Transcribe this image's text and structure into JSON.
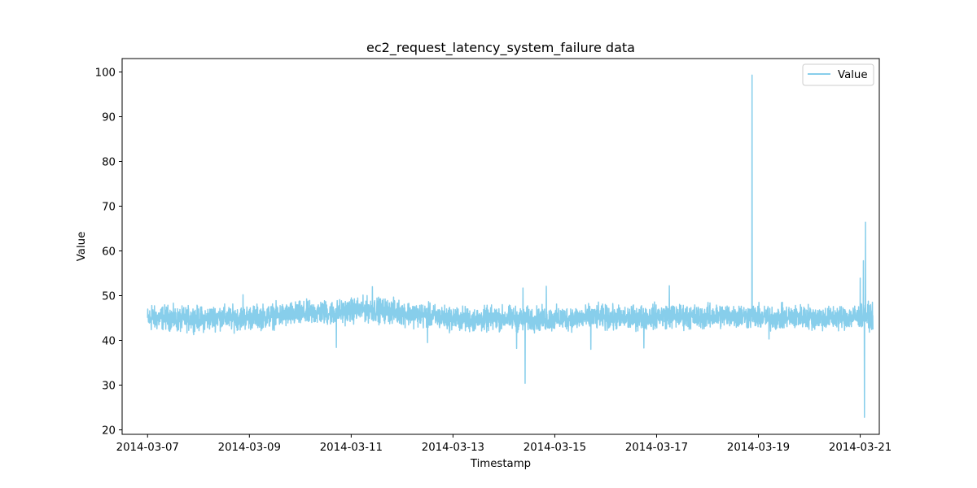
{
  "chart_data": {
    "type": "line",
    "title": "ec2_request_latency_system_failure data",
    "xlabel": "Timestamp",
    "ylabel": "Value",
    "x_range": [
      "2014-03-06T12:00",
      "2014-03-21T09:00"
    ],
    "ylim": [
      19.0,
      103.0
    ],
    "x_ticks": [
      "2014-03-07",
      "2014-03-09",
      "2014-03-11",
      "2014-03-13",
      "2014-03-15",
      "2014-03-17",
      "2014-03-19",
      "2014-03-21"
    ],
    "y_ticks": [
      20,
      30,
      40,
      50,
      60,
      70,
      80,
      90,
      100
    ],
    "grid": false,
    "legend": {
      "position": "top-right",
      "entries": [
        "Value"
      ]
    },
    "series": [
      {
        "name": "Value",
        "color": "#87ceeb",
        "x": [
          "2014-03-07T03:00",
          "2014-03-07T09:00",
          "2014-03-07T15:00",
          "2014-03-07T21:00",
          "2014-03-08T03:00",
          "2014-03-08T09:00",
          "2014-03-08T15:00",
          "2014-03-08T21:00",
          "2014-03-09T03:00",
          "2014-03-09T09:00",
          "2014-03-09T15:00",
          "2014-03-09T21:00",
          "2014-03-10T03:00",
          "2014-03-10T09:00",
          "2014-03-10T15:00",
          "2014-03-10T21:00",
          "2014-03-11T03:00",
          "2014-03-11T09:00",
          "2014-03-11T15:00",
          "2014-03-11T21:00",
          "2014-03-12T03:00",
          "2014-03-12T09:00",
          "2014-03-12T15:00",
          "2014-03-12T21:00",
          "2014-03-13T03:00",
          "2014-03-13T09:00",
          "2014-03-13T15:00",
          "2014-03-13T21:00",
          "2014-03-14T03:00",
          "2014-03-14T09:00",
          "2014-03-14T15:00",
          "2014-03-14T21:00",
          "2014-03-15T03:00",
          "2014-03-15T09:00",
          "2014-03-15T15:00",
          "2014-03-15T21:00",
          "2014-03-16T03:00",
          "2014-03-16T09:00",
          "2014-03-16T15:00",
          "2014-03-16T21:00",
          "2014-03-17T03:00",
          "2014-03-17T09:00",
          "2014-03-17T15:00",
          "2014-03-17T21:00",
          "2014-03-18T03:00",
          "2014-03-18T09:00",
          "2014-03-18T15:00",
          "2014-03-18T21:00",
          "2014-03-19T03:00",
          "2014-03-19T09:00",
          "2014-03-19T15:00",
          "2014-03-19T21:00",
          "2014-03-20T03:00",
          "2014-03-20T09:00",
          "2014-03-20T15:00",
          "2014-03-20T21:00",
          "2014-03-21T03:00",
          "2014-03-21T06:00"
        ],
        "values": [
          44.8,
          45.2,
          44.5,
          45.0,
          44.7,
          45.3,
          44.9,
          45.1,
          45.2,
          45.4,
          45.6,
          45.8,
          46.0,
          46.3,
          46.1,
          46.5,
          46.8,
          46.9,
          46.7,
          46.4,
          46.0,
          45.6,
          45.3,
          45.0,
          44.8,
          44.6,
          44.7,
          44.9,
          45.0,
          44.6,
          44.8,
          44.7,
          44.9,
          45.0,
          45.1,
          45.2,
          45.0,
          44.9,
          45.1,
          45.3,
          45.5,
          45.4,
          45.3,
          45.2,
          45.4,
          45.6,
          45.5,
          45.3,
          45.1,
          45.0,
          45.2,
          45.3,
          45.1,
          45.0,
          45.2,
          45.3,
          45.4,
          45.0
        ],
        "min": 22.8,
        "max": 99.3,
        "spikes": [
          {
            "x": "2014-03-07T02:00",
            "value": 47.8
          },
          {
            "x": "2014-03-08T21:00",
            "value": 50.2
          },
          {
            "x": "2014-03-10T17:00",
            "value": 38.4
          },
          {
            "x": "2014-03-11T10:00",
            "value": 52.0
          },
          {
            "x": "2014-03-12T12:00",
            "value": 39.5
          },
          {
            "x": "2014-03-14T06:00",
            "value": 38.2
          },
          {
            "x": "2014-03-14T09:00",
            "value": 51.7
          },
          {
            "x": "2014-03-14T10:00",
            "value": 30.4
          },
          {
            "x": "2014-03-14T20:00",
            "value": 52.1
          },
          {
            "x": "2014-03-15T17:00",
            "value": 38.0
          },
          {
            "x": "2014-03-16T18:00",
            "value": 38.3
          },
          {
            "x": "2014-03-17T06:00",
            "value": 52.2
          },
          {
            "x": "2014-03-18T21:00",
            "value": 99.3
          },
          {
            "x": "2014-03-19T05:00",
            "value": 40.3
          },
          {
            "x": "2014-03-21T00:00",
            "value": 53.9
          },
          {
            "x": "2014-03-21T01:30",
            "value": 57.8
          },
          {
            "x": "2014-03-21T02:30",
            "value": 66.4
          },
          {
            "x": "2014-03-21T02:00",
            "value": 22.8
          }
        ]
      }
    ]
  }
}
